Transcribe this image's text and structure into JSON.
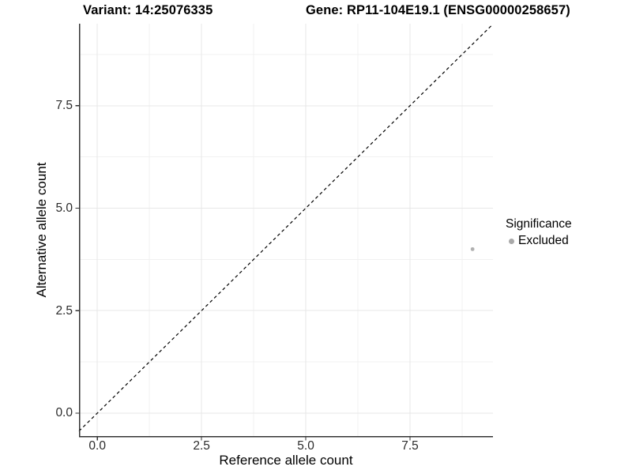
{
  "header": {
    "variant_label": "Variant: 14:25076335",
    "gene_label": "Gene: RP11-104E19.1 (ENSG00000258657)"
  },
  "chart_data": {
    "type": "scatter",
    "title": "Variant: 14:25076335 / Gene: RP11-104E19.1 (ENSG00000258657)",
    "xlabel": "Reference allele count",
    "ylabel": "Alternative allele count",
    "xlim": [
      -0.44,
      9.49
    ],
    "ylim": [
      -0.58,
      9.5
    ],
    "xticks": [
      0,
      2.5,
      5,
      7.5
    ],
    "yticks": [
      0,
      2.5,
      5,
      7.5
    ],
    "xtick_labels": [
      "0.0",
      "2.5",
      "5.0",
      "7.5"
    ],
    "ytick_labels": [
      "0.0",
      "2.5",
      "5.0",
      "7.5"
    ],
    "minor_xticks": [
      1.25,
      3.75,
      6.25,
      8.75
    ],
    "minor_yticks": [
      1.25,
      3.75,
      6.25,
      8.75
    ],
    "grid": true,
    "series": [
      {
        "name": "Excluded",
        "color": "#b0b0b0",
        "points": [
          {
            "x": 9,
            "y": 4
          }
        ]
      }
    ],
    "identity_line": {
      "slope": 1,
      "intercept": 0,
      "style": "dashed",
      "color": "#000000"
    },
    "legend": {
      "title": "Significance",
      "position": "right",
      "entries": [
        {
          "label": "Excluded",
          "color": "#a9a9a9"
        }
      ]
    }
  },
  "theme": {
    "background": "#ffffff",
    "grid_major": "#e7e7e7",
    "grid_minor": "#f1f1f1",
    "axis_line": "#333333",
    "tick_color": "#333333",
    "tick_label_color": "#2b2b2b",
    "axis_title_color": "#000000",
    "title_color": "#000000"
  }
}
